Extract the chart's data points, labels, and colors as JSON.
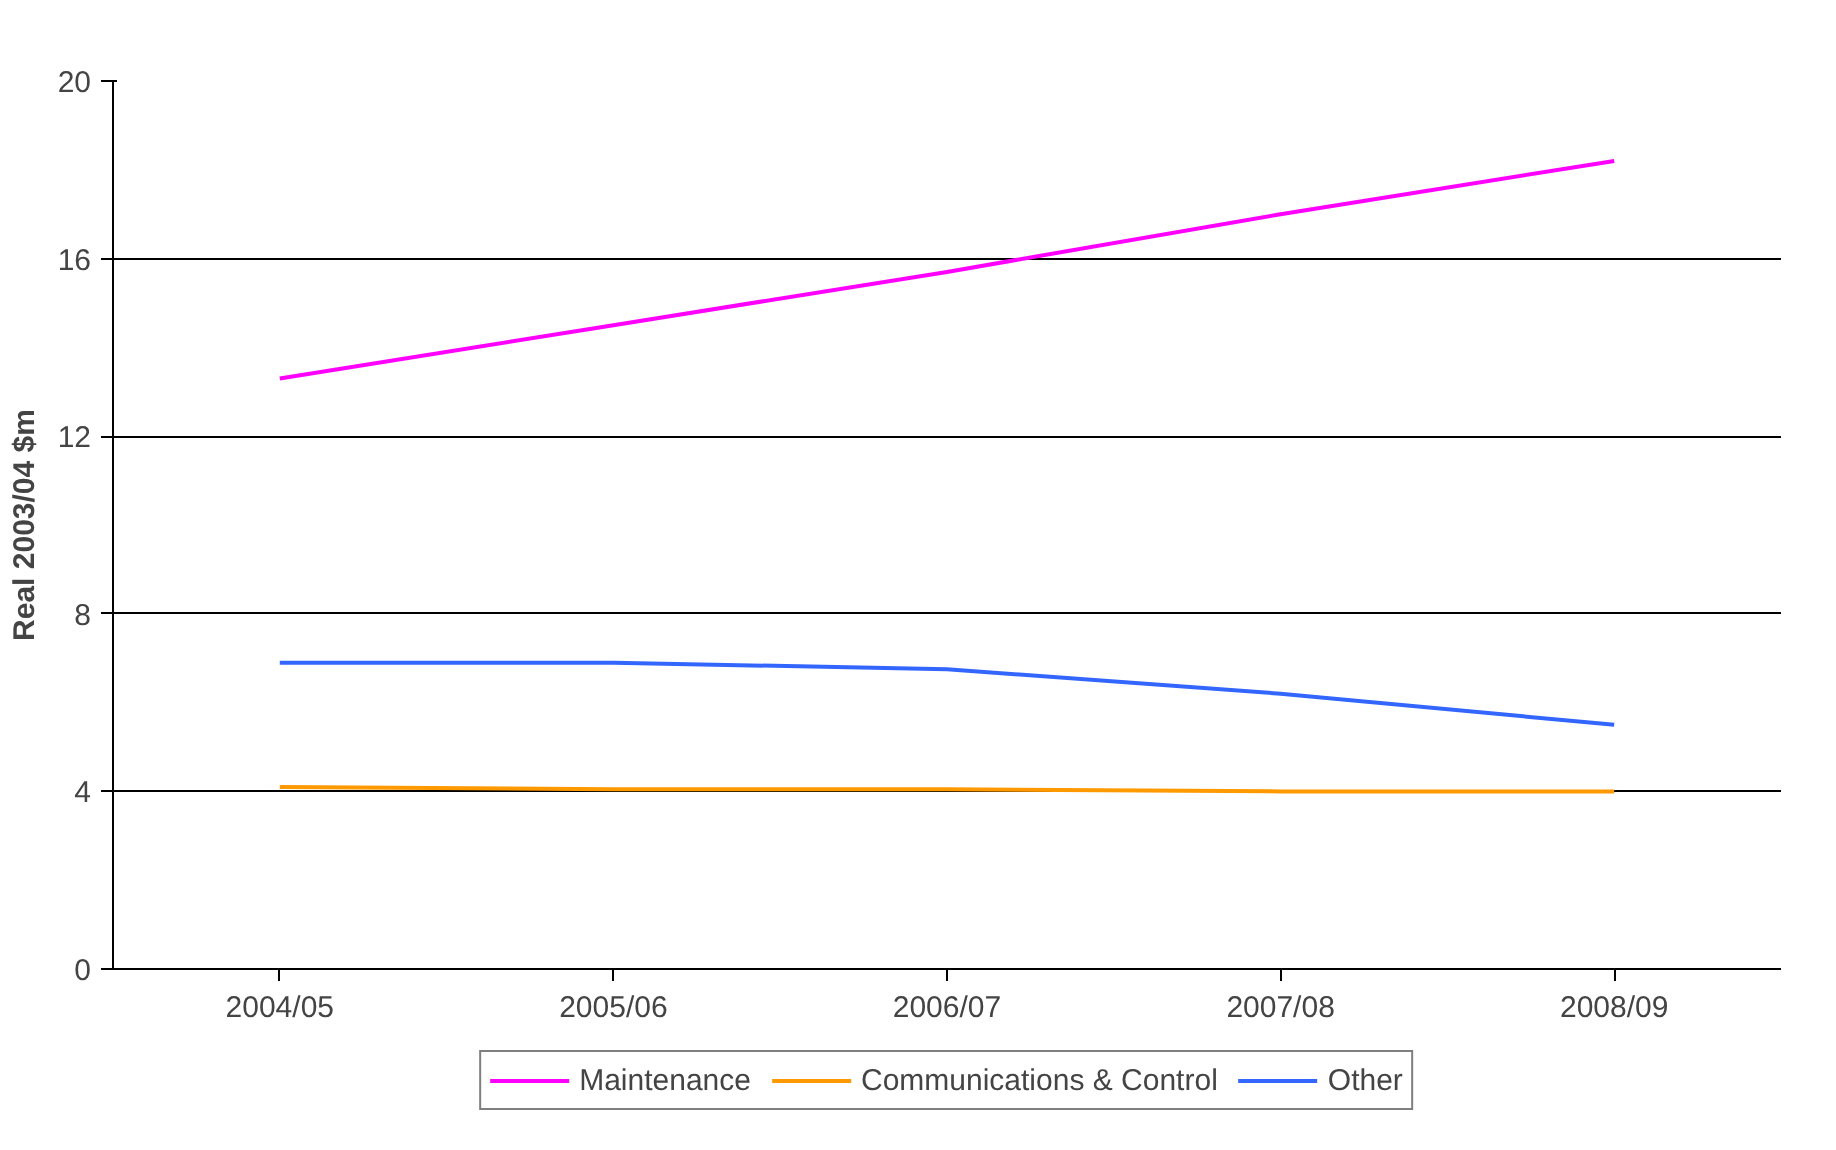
{
  "chart_data": {
    "type": "line",
    "ylabel": "Real 2003/04 $m",
    "categories": [
      "2004/05",
      "2005/06",
      "2006/07",
      "2007/08",
      "2008/09"
    ],
    "series": [
      {
        "name": "Maintenance",
        "color": "#ff00ff",
        "values": [
          13.3,
          14.5,
          15.7,
          17.0,
          18.2
        ]
      },
      {
        "name": "Communications & Control",
        "color": "#ff9900",
        "values": [
          4.1,
          4.05,
          4.05,
          4.0,
          4.0
        ]
      },
      {
        "name": "Other",
        "color": "#3366ff",
        "values": [
          6.9,
          6.9,
          6.75,
          6.2,
          5.5
        ]
      }
    ],
    "ylim": [
      0,
      20
    ],
    "yticks": [
      0,
      4,
      8,
      12,
      16,
      20
    ],
    "grid": "y",
    "legend": "bottom",
    "marker": "none",
    "line_style": "solid"
  }
}
